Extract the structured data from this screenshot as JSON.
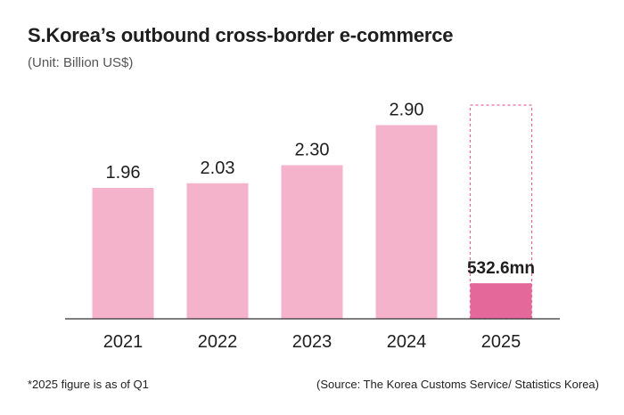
{
  "chart_data": {
    "type": "bar",
    "title": "S.Korea’s outbound cross-border e-commerce",
    "subtitle": "(Unit: Billion US$)",
    "categories": [
      "2021",
      "2022",
      "2023",
      "2024",
      "2025"
    ],
    "values": [
      1.96,
      2.03,
      2.3,
      2.9,
      0.5326
    ],
    "data_labels": [
      "1.96",
      "2.03",
      "2.30",
      "2.90",
      "532.6mn"
    ],
    "ylim": [
      0,
      3.2
    ],
    "xlabel": "",
    "ylabel": "",
    "grid": false,
    "highlight_index": 4,
    "colors": {
      "bar": "#f4b3cb",
      "highlight": "#e4699a",
      "dashed_outline": "#e4699a",
      "axis": "#333333"
    }
  },
  "footnote": "*2025 figure is as of Q1",
  "source": "(Source: The Korea Customs Service/ Statistics Korea)"
}
